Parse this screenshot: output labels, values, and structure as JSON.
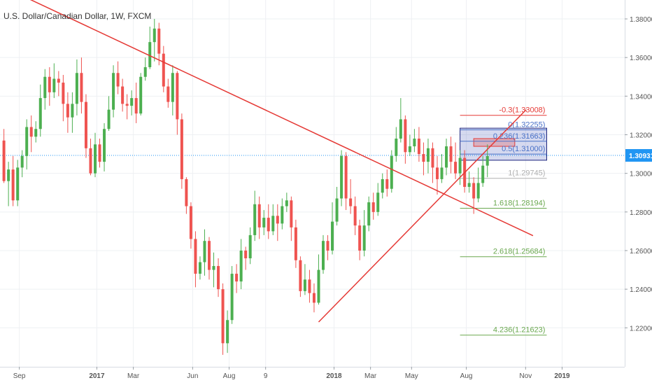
{
  "chart_data": {
    "type": "candlestick",
    "title": "U.S. Dollar/Canadian Dollar, 1W, FXCM",
    "colors": {
      "up": "#4caf50",
      "down": "#ef5350",
      "trendline": "#e53935",
      "price_line": "#2196f3",
      "fib_blue": "#4a72c8",
      "fib_green": "#6aa84f",
      "fib_gray": "#b0b0b0",
      "fib_red": "#e53935",
      "price_label_bg": "#2196f3",
      "rect_fill_blue": "#3f51b5",
      "rect_fill_red": "#e53935"
    },
    "x_axis": {
      "ticks": [
        {
          "label": "Sep",
          "week": 0
        },
        {
          "label": "2017",
          "week": 17,
          "bold": true
        },
        {
          "label": "Mar",
          "week": 25
        },
        {
          "label": "Jun",
          "week": 38
        },
        {
          "label": "Aug",
          "week": 46
        },
        {
          "label": "9",
          "week": 54
        },
        {
          "label": "2018",
          "week": 69,
          "bold": true
        },
        {
          "label": "Mar",
          "week": 77
        },
        {
          "label": "May",
          "week": 86
        },
        {
          "label": "Aug",
          "week": 98
        },
        {
          "label": "Nov",
          "week": 111
        },
        {
          "label": "2019",
          "week": 119,
          "bold": true
        }
      ]
    },
    "y_axis": {
      "range": [
        1.1998,
        1.3898
      ],
      "ticks": [
        "1.38000",
        "1.36000",
        "1.34000",
        "1.32000",
        "1.30000",
        "1.28000",
        "1.26000",
        "1.24000",
        "1.22000"
      ]
    },
    "current_price": {
      "value": 1.30931,
      "label": "1.30931"
    },
    "candles": [
      [
        1.317,
        1.296,
        1.323,
        1.295
      ],
      [
        1.296,
        1.302,
        1.306,
        1.283
      ],
      [
        1.302,
        1.286,
        1.309,
        1.283
      ],
      [
        1.286,
        1.303,
        1.307,
        1.283
      ],
      [
        1.303,
        1.309,
        1.312,
        1.298
      ],
      [
        1.309,
        1.324,
        1.328,
        1.302
      ],
      [
        1.324,
        1.319,
        1.33,
        1.311
      ],
      [
        1.319,
        1.323,
        1.327,
        1.316
      ],
      [
        1.323,
        1.339,
        1.346,
        1.319
      ],
      [
        1.339,
        1.35,
        1.354,
        1.333
      ],
      [
        1.35,
        1.342,
        1.355,
        1.335
      ],
      [
        1.342,
        1.349,
        1.357,
        1.339
      ],
      [
        1.349,
        1.347,
        1.353,
        1.34
      ],
      [
        1.347,
        1.336,
        1.351,
        1.327
      ],
      [
        1.336,
        1.329,
        1.342,
        1.321
      ],
      [
        1.329,
        1.336,
        1.342,
        1.321
      ],
      [
        1.336,
        1.352,
        1.359,
        1.33
      ],
      [
        1.352,
        1.337,
        1.36,
        1.331
      ],
      [
        1.337,
        1.313,
        1.341,
        1.308
      ],
      [
        1.313,
        1.3,
        1.318,
        1.299
      ],
      [
        1.3,
        1.315,
        1.321,
        1.298
      ],
      [
        1.315,
        1.306,
        1.318,
        1.303
      ],
      [
        1.306,
        1.323,
        1.326,
        1.301
      ],
      [
        1.323,
        1.333,
        1.34,
        1.322
      ],
      [
        1.333,
        1.352,
        1.356,
        1.329
      ],
      [
        1.352,
        1.345,
        1.358,
        1.341
      ],
      [
        1.345,
        1.336,
        1.349,
        1.332
      ],
      [
        1.336,
        1.335,
        1.341,
        1.328
      ],
      [
        1.335,
        1.339,
        1.343,
        1.33
      ],
      [
        1.339,
        1.331,
        1.347,
        1.326
      ],
      [
        1.331,
        1.35,
        1.352,
        1.33
      ],
      [
        1.35,
        1.355,
        1.36,
        1.348
      ],
      [
        1.355,
        1.368,
        1.376,
        1.354
      ],
      [
        1.368,
        1.375,
        1.38,
        1.358
      ],
      [
        1.375,
        1.362,
        1.378,
        1.356
      ],
      [
        1.362,
        1.345,
        1.366,
        1.342
      ],
      [
        1.345,
        1.337,
        1.349,
        1.334
      ],
      [
        1.337,
        1.352,
        1.356,
        1.33
      ],
      [
        1.352,
        1.328,
        1.353,
        1.32
      ],
      [
        1.328,
        1.297,
        1.331,
        1.292
      ],
      [
        1.297,
        1.283,
        1.298,
        1.279
      ],
      [
        1.283,
        1.266,
        1.285,
        1.261
      ],
      [
        1.266,
        1.248,
        1.27,
        1.241
      ],
      [
        1.248,
        1.254,
        1.257,
        1.245
      ],
      [
        1.254,
        1.265,
        1.271,
        1.247
      ],
      [
        1.265,
        1.25,
        1.267,
        1.245
      ],
      [
        1.25,
        1.252,
        1.259,
        1.241
      ],
      [
        1.252,
        1.24,
        1.256,
        1.236
      ],
      [
        1.24,
        1.212,
        1.243,
        1.206
      ],
      [
        1.212,
        1.224,
        1.229,
        1.207
      ],
      [
        1.224,
        1.248,
        1.252,
        1.222
      ],
      [
        1.248,
        1.244,
        1.253,
        1.238
      ],
      [
        1.244,
        1.26,
        1.266,
        1.24
      ],
      [
        1.26,
        1.256,
        1.262,
        1.25
      ],
      [
        1.256,
        1.268,
        1.272,
        1.253
      ],
      [
        1.268,
        1.284,
        1.291,
        1.265
      ],
      [
        1.284,
        1.272,
        1.288,
        1.266
      ],
      [
        1.272,
        1.277,
        1.281,
        1.268
      ],
      [
        1.277,
        1.27,
        1.284,
        1.266
      ],
      [
        1.27,
        1.278,
        1.284,
        1.268
      ],
      [
        1.278,
        1.274,
        1.284,
        1.265
      ],
      [
        1.274,
        1.283,
        1.287,
        1.271
      ],
      [
        1.283,
        1.286,
        1.29,
        1.28
      ],
      [
        1.286,
        1.272,
        1.288,
        1.265
      ],
      [
        1.272,
        1.255,
        1.276,
        1.251
      ],
      [
        1.255,
        1.239,
        1.257,
        1.236
      ],
      [
        1.239,
        1.245,
        1.253,
        1.237
      ],
      [
        1.245,
        1.238,
        1.25,
        1.233
      ],
      [
        1.238,
        1.233,
        1.243,
        1.228
      ],
      [
        1.233,
        1.25,
        1.258,
        1.232
      ],
      [
        1.25,
        1.265,
        1.268,
        1.248
      ],
      [
        1.265,
        1.26,
        1.268,
        1.255
      ],
      [
        1.26,
        1.275,
        1.285,
        1.258
      ],
      [
        1.275,
        1.287,
        1.293,
        1.273
      ],
      [
        1.287,
        1.309,
        1.312,
        1.283
      ],
      [
        1.309,
        1.287,
        1.311,
        1.281
      ],
      [
        1.287,
        1.283,
        1.297,
        1.279
      ],
      [
        1.283,
        1.273,
        1.288,
        1.268
      ],
      [
        1.273,
        1.26,
        1.276,
        1.255
      ],
      [
        1.26,
        1.273,
        1.281,
        1.257
      ],
      [
        1.273,
        1.285,
        1.288,
        1.27
      ],
      [
        1.285,
        1.28,
        1.29,
        1.276
      ],
      [
        1.28,
        1.29,
        1.295,
        1.278
      ],
      [
        1.29,
        1.297,
        1.3,
        1.287
      ],
      [
        1.297,
        1.292,
        1.302,
        1.288
      ],
      [
        1.292,
        1.309,
        1.312,
        1.29
      ],
      [
        1.309,
        1.318,
        1.324,
        1.306
      ],
      [
        1.318,
        1.328,
        1.339,
        1.316
      ],
      [
        1.328,
        1.311,
        1.33,
        1.305
      ],
      [
        1.311,
        1.314,
        1.32,
        1.309
      ],
      [
        1.314,
        1.318,
        1.323,
        1.311
      ],
      [
        1.318,
        1.31,
        1.324,
        1.306
      ],
      [
        1.31,
        1.306,
        1.316,
        1.299
      ],
      [
        1.306,
        1.313,
        1.318,
        1.3
      ],
      [
        1.313,
        1.303,
        1.316,
        1.295
      ],
      [
        1.303,
        1.297,
        1.309,
        1.289
      ],
      [
        1.297,
        1.303,
        1.31,
        1.295
      ],
      [
        1.303,
        1.314,
        1.318,
        1.299
      ],
      [
        1.314,
        1.306,
        1.319,
        1.3
      ],
      [
        1.306,
        1.3,
        1.316,
        1.297
      ],
      [
        1.3,
        1.308,
        1.312,
        1.294
      ],
      [
        1.308,
        1.293,
        1.312,
        1.29
      ],
      [
        1.293,
        1.295,
        1.301,
        1.29
      ],
      [
        1.295,
        1.287,
        1.298,
        1.279
      ],
      [
        1.287,
        1.295,
        1.303,
        1.285
      ],
      [
        1.295,
        1.304,
        1.309,
        1.293
      ],
      [
        1.304,
        1.309,
        1.315,
        1.298
      ]
    ],
    "trendlines": [
      {
        "from": [
          -5,
          1.402
        ],
        "to": [
          116,
          1.2677
        ]
      },
      {
        "from": [
          69,
          1.223
        ],
        "to": [
          114.5,
          1.333
        ]
      }
    ],
    "fibonacci": {
      "x_start": 100,
      "x_end": 119,
      "levels": [
        {
          "label": "-0.3(1.33008)",
          "value": 1.33008,
          "color": "red"
        },
        {
          "label": "0(1.32255)",
          "value": 1.32255,
          "color": "blue"
        },
        {
          "label": "0.236(1.31663)",
          "value": 1.31663,
          "color": "blue"
        },
        {
          "label": "0.5(1.31000)",
          "value": 1.31,
          "color": "blue"
        },
        {
          "label": "1(1.29745)",
          "value": 1.29745,
          "color": "gray"
        },
        {
          "label": "1.618(1.28194)",
          "value": 1.28194,
          "color": "green"
        },
        {
          "label": "2.618(1.25684)",
          "value": 1.25684,
          "color": "green"
        },
        {
          "label": "4.236(1.21623)",
          "value": 1.21623,
          "color": "green"
        }
      ],
      "zone_blue": {
        "x0": 100,
        "x1": 119,
        "y0": 1.3234,
        "y1": 1.3068
      },
      "zone_red": {
        "x0": 103,
        "x1": 112,
        "y0": 1.318,
        "y1": 1.314
      }
    }
  }
}
